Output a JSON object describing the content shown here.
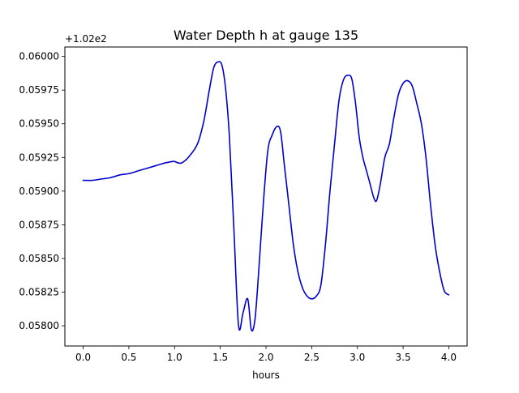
{
  "chart_data": {
    "type": "line",
    "title": "Water Depth h at gauge 135",
    "xlabel": "hours",
    "ylabel": "",
    "y_offset_label": "+1.02e2",
    "y_offset": 102,
    "xlim": [
      -0.2,
      4.2
    ],
    "ylim": [
      0.05785,
      0.06007
    ],
    "x_ticks": [
      0.0,
      0.5,
      1.0,
      1.5,
      2.0,
      2.5,
      3.0,
      3.5,
      4.0
    ],
    "x_tick_labels": [
      "0.0",
      "0.5",
      "1.0",
      "1.5",
      "2.0",
      "2.5",
      "3.0",
      "3.5",
      "4.0"
    ],
    "y_ticks": [
      0.058,
      0.05825,
      0.0585,
      0.05875,
      0.059,
      0.05925,
      0.0595,
      0.05975,
      0.06
    ],
    "y_tick_labels": [
      "0.05800",
      "0.05825",
      "0.05850",
      "0.05875",
      "0.05900",
      "0.05925",
      "0.05950",
      "0.05975",
      "0.06000"
    ],
    "grid": false,
    "series": [
      {
        "name": "",
        "color": "#0000cc",
        "x": [
          0.0,
          0.1,
          0.2,
          0.3,
          0.4,
          0.5,
          0.6,
          0.7,
          0.8,
          0.9,
          0.98,
          1.0,
          1.04,
          1.08,
          1.15,
          1.25,
          1.32,
          1.38,
          1.43,
          1.48,
          1.52,
          1.56,
          1.6,
          1.65,
          1.7,
          1.75,
          1.8,
          1.84,
          1.88,
          1.92,
          1.97,
          2.02,
          2.07,
          2.12,
          2.16,
          2.2,
          2.25,
          2.3,
          2.35,
          2.4,
          2.45,
          2.5,
          2.55,
          2.6,
          2.65,
          2.7,
          2.75,
          2.8,
          2.85,
          2.9,
          2.94,
          2.98,
          3.02,
          3.06,
          3.1,
          3.14,
          3.18,
          3.21,
          3.25,
          3.3,
          3.35,
          3.4,
          3.45,
          3.5,
          3.55,
          3.6,
          3.65,
          3.7,
          3.75,
          3.8,
          3.85,
          3.9,
          3.95,
          4.0
        ],
        "y": [
          0.05908,
          0.05908,
          0.05909,
          0.0591,
          0.05912,
          0.05913,
          0.05915,
          0.05917,
          0.05919,
          0.05921,
          0.05922,
          0.05922,
          0.05921,
          0.05921,
          0.05925,
          0.05935,
          0.05952,
          0.05975,
          0.05992,
          0.05996,
          0.05993,
          0.05975,
          0.0594,
          0.0587,
          0.058,
          0.0581,
          0.0582,
          0.05797,
          0.05805,
          0.0584,
          0.0589,
          0.0593,
          0.05942,
          0.05948,
          0.05944,
          0.0592,
          0.0589,
          0.0586,
          0.0584,
          0.05828,
          0.05822,
          0.0582,
          0.05822,
          0.0583,
          0.0586,
          0.059,
          0.05935,
          0.05968,
          0.05983,
          0.05986,
          0.05983,
          0.05965,
          0.0594,
          0.05925,
          0.05915,
          0.05905,
          0.05895,
          0.05893,
          0.05905,
          0.05925,
          0.05935,
          0.05955,
          0.05972,
          0.0598,
          0.05982,
          0.05978,
          0.05965,
          0.0595,
          0.05925,
          0.0589,
          0.0586,
          0.0584,
          0.05826,
          0.05823
        ]
      }
    ]
  }
}
